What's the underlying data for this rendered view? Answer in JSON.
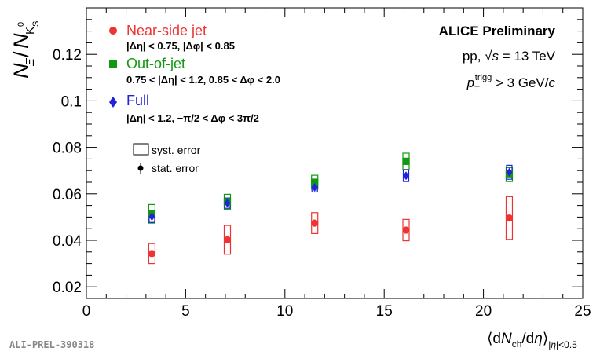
{
  "chart_data": {
    "type": "scatter",
    "ylabel": "N_Ξ / N_KS0",
    "xlabel": "⟨dN_ch/dη⟩_|η|<0.5",
    "xlim": [
      0,
      25
    ],
    "ylim": [
      0.015,
      0.14
    ],
    "x_ticks": [
      "0",
      "5",
      "10",
      "15",
      "20",
      "25"
    ],
    "y_ticks": [
      "0.02",
      "0.04",
      "0.06",
      "0.08",
      "0.1",
      "0.12"
    ],
    "grid": false,
    "legend_position": "top-left",
    "series": [
      {
        "name": "Near-side jet",
        "selection": "|Δη| < 0.75, |Δφ| < 0.85",
        "color": "#ee3333",
        "marker": "circle",
        "points": [
          {
            "x": 3.3,
            "y": 0.0343,
            "stat": 0.0008,
            "syst": 0.0043
          },
          {
            "x": 7.1,
            "y": 0.0402,
            "stat": 0.0008,
            "syst": 0.0062
          },
          {
            "x": 11.5,
            "y": 0.0474,
            "stat": 0.0008,
            "syst": 0.0045
          },
          {
            "x": 16.1,
            "y": 0.0444,
            "stat": 0.0009,
            "syst": 0.0046
          },
          {
            "x": 21.3,
            "y": 0.0496,
            "stat": 0.0012,
            "syst": 0.0092
          }
        ]
      },
      {
        "name": "Out-of-jet",
        "selection": "0.75 < |Δη| < 1.2, 0.85 < Δφ < 2.0",
        "color": "#119911",
        "marker": "square",
        "points": [
          {
            "x": 3.3,
            "y": 0.0514,
            "stat": 0.0008,
            "syst": 0.004
          },
          {
            "x": 7.1,
            "y": 0.0566,
            "stat": 0.0008,
            "syst": 0.0032
          },
          {
            "x": 11.5,
            "y": 0.065,
            "stat": 0.0008,
            "syst": 0.003
          },
          {
            "x": 16.1,
            "y": 0.074,
            "stat": 0.001,
            "syst": 0.0035
          },
          {
            "x": 21.3,
            "y": 0.0683,
            "stat": 0.0012,
            "syst": 0.003
          }
        ]
      },
      {
        "name": "Full",
        "selection": "|Δη| < 1.2, −π/2 < Δφ < 3π/2",
        "color": "#2222dd",
        "marker": "diamond",
        "points": [
          {
            "x": 3.3,
            "y": 0.0502,
            "stat": 0.0006,
            "syst": 0.0025
          },
          {
            "x": 7.1,
            "y": 0.056,
            "stat": 0.0006,
            "syst": 0.0022
          },
          {
            "x": 11.5,
            "y": 0.0628,
            "stat": 0.0006,
            "syst": 0.002
          },
          {
            "x": 16.1,
            "y": 0.0678,
            "stat": 0.0008,
            "syst": 0.0025
          },
          {
            "x": 21.3,
            "y": 0.0693,
            "stat": 0.001,
            "syst": 0.003
          }
        ]
      }
    ],
    "error_legend": {
      "syst": "syst. error",
      "stat": "stat. error"
    },
    "annotations": {
      "experiment": "ALICE Preliminary",
      "system": "pp, √s = 13 TeV",
      "trigger": "p_T^trigg > 3 GeV/c"
    }
  },
  "footer": {
    "id": "ALI-PREL-390318"
  }
}
